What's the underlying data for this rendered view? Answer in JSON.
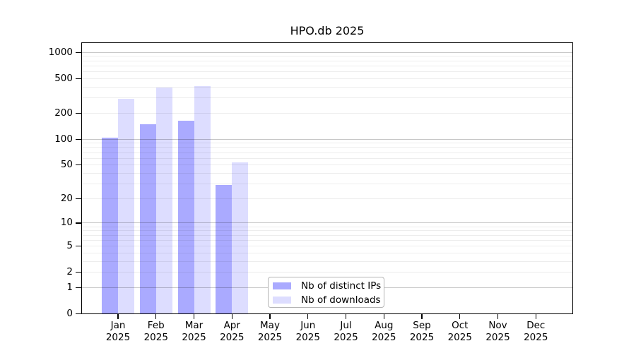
{
  "chart_data": {
    "type": "bar",
    "title": "HPO.db 2025",
    "x_categories": [
      "Jan",
      "Feb",
      "Mar",
      "Apr",
      "May",
      "Jun",
      "Jul",
      "Aug",
      "Sep",
      "Oct",
      "Nov",
      "Dec"
    ],
    "x_year_label": "2025",
    "series": [
      {
        "name": "Nb of distinct IPs",
        "color": "#aaaaff",
        "values": [
          105,
          148,
          165,
          29,
          0,
          0,
          0,
          0,
          0,
          0,
          0,
          0
        ]
      },
      {
        "name": "Nb of downloads",
        "color": "#ddddff",
        "values": [
          290,
          395,
          410,
          54,
          0,
          0,
          0,
          0,
          0,
          0,
          0,
          0
        ]
      }
    ],
    "y_axis": {
      "scale": "log1p",
      "tick_values": [
        0,
        1,
        2,
        5,
        10,
        20,
        50,
        100,
        200,
        500,
        1000
      ],
      "range": [
        0,
        1320
      ],
      "major_gridlines": [
        1,
        10,
        100,
        1000
      ],
      "minor_gridlines": [
        2,
        3,
        4,
        5,
        6,
        7,
        8,
        9,
        20,
        30,
        40,
        50,
        60,
        70,
        80,
        90,
        200,
        300,
        400,
        500,
        600,
        700,
        800,
        900
      ]
    },
    "legend": {
      "position": "bottom-center",
      "entries": [
        "Nb of distinct IPs",
        "Nb of downloads"
      ]
    },
    "grid": true,
    "colors": {
      "axis": "#000000",
      "bar_distinct_ips": "#aaaaff",
      "bar_downloads": "#ddddff",
      "major_grid": "rgba(0,0,0,0.22)",
      "minor_grid": "rgba(0,0,0,0.07)",
      "background": "#ffffff"
    }
  }
}
